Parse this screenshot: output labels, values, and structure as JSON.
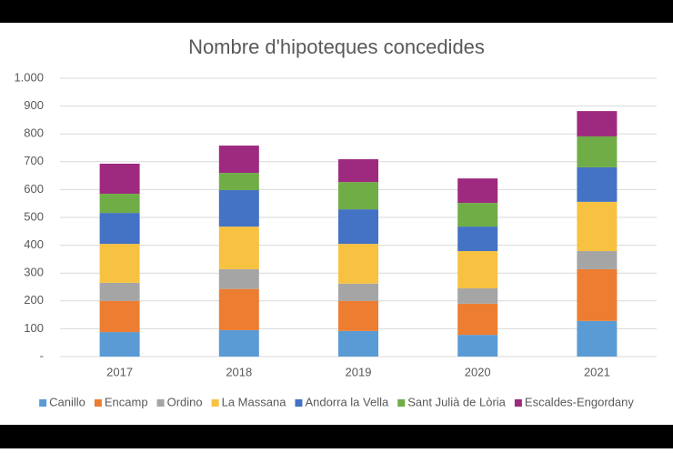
{
  "chart_data": {
    "type": "stacked-bar",
    "title": "Nombre d'hipoteques concedides",
    "categories": [
      "2017",
      "2018",
      "2019",
      "2020",
      "2021"
    ],
    "series": [
      {
        "name": "Canillo",
        "color": "#5b9bd5",
        "values": [
          88,
          95,
          92,
          78,
          128
        ]
      },
      {
        "name": "Encamp",
        "color": "#ed7d31",
        "values": [
          112,
          148,
          108,
          112,
          186
        ]
      },
      {
        "name": "Ordino",
        "color": "#a5a5a5",
        "values": [
          65,
          71,
          62,
          55,
          65
        ]
      },
      {
        "name": "La Massana",
        "color": "#f7c242",
        "values": [
          140,
          153,
          143,
          134,
          177
        ]
      },
      {
        "name": "Andorra la Vella",
        "color": "#4472c4",
        "values": [
          111,
          131,
          124,
          88,
          124
        ]
      },
      {
        "name": "Sant Julià de Lòria",
        "color": "#70ad47",
        "values": [
          69,
          62,
          98,
          85,
          111
        ]
      },
      {
        "name": "Escaldes-Engordany",
        "color": "#9e2a7f",
        "values": [
          108,
          98,
          82,
          88,
          91
        ]
      }
    ],
    "ylim": [
      0,
      1000
    ],
    "yticks": [
      {
        "value": 0,
        "label": "-"
      },
      100,
      200,
      300,
      400,
      500,
      600,
      700,
      800,
      900,
      {
        "value": 1000,
        "label": "1.000"
      }
    ],
    "grid": true,
    "legend": "bottom"
  }
}
